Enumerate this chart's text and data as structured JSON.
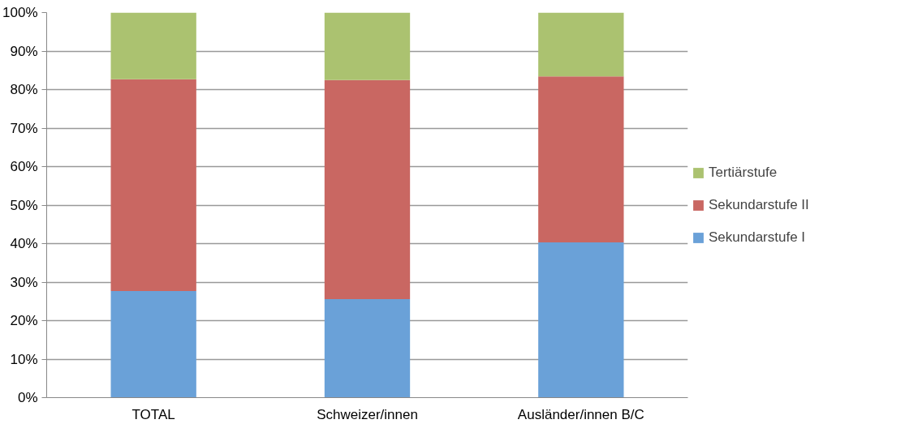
{
  "chart_data": {
    "type": "bar",
    "stacked": true,
    "categories": [
      "TOTAL",
      "Schweizer/innen",
      "Ausländer/innen B/C"
    ],
    "series": [
      {
        "name": "Sekundarstufe I",
        "color": "#6aa1d8",
        "values": [
          27.7,
          25.6,
          40.3
        ]
      },
      {
        "name": "Sekundarstufe II",
        "color": "#c96762",
        "values": [
          55.0,
          56.9,
          43.1
        ]
      },
      {
        "name": "Tertiärstufe",
        "color": "#abc270",
        "values": [
          17.3,
          17.5,
          16.6
        ]
      }
    ],
    "ylim": [
      0,
      100
    ],
    "yticks": [
      {
        "value": 0,
        "label": "0%"
      },
      {
        "value": 10,
        "label": "10%"
      },
      {
        "value": 20,
        "label": "20%"
      },
      {
        "value": 30,
        "label": "30%"
      },
      {
        "value": 40,
        "label": "40%"
      },
      {
        "value": 50,
        "label": "50%"
      },
      {
        "value": 60,
        "label": "60%"
      },
      {
        "value": 70,
        "label": "70%"
      },
      {
        "value": 80,
        "label": "80%"
      },
      {
        "value": 90,
        "label": "90%"
      },
      {
        "value": 100,
        "label": "100%"
      }
    ],
    "grid": "y",
    "legend": "right"
  }
}
